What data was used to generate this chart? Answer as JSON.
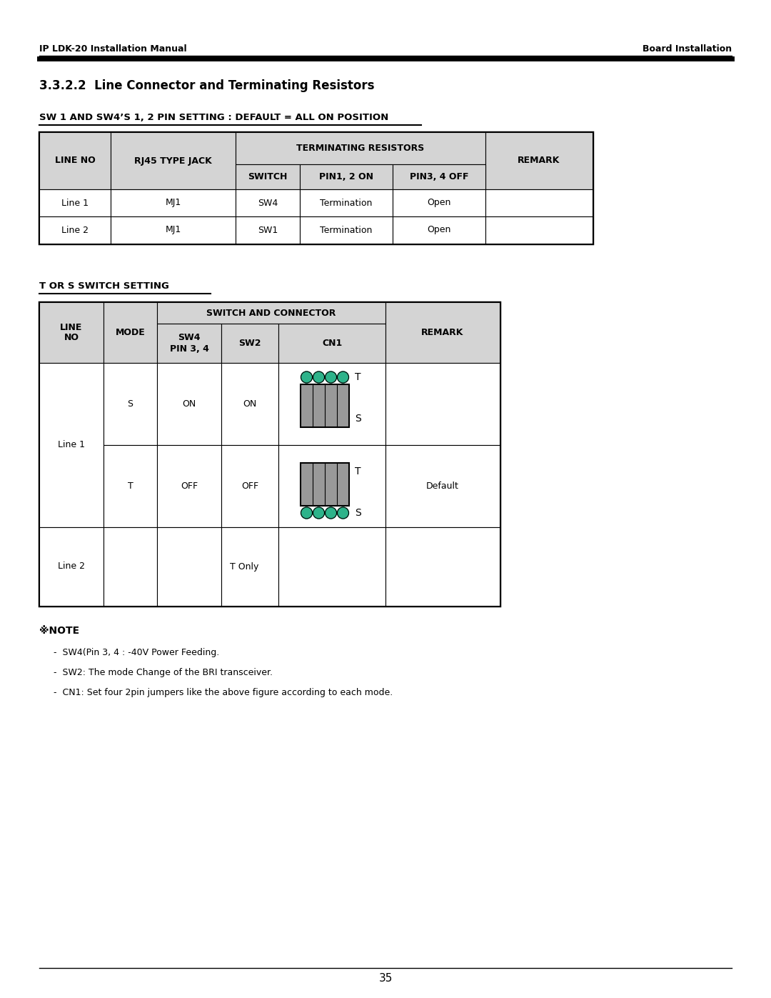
{
  "header_left": "IP LDK-20 Installation Manual",
  "header_right": "Board Installation",
  "section_title": "3.3.2.2  Line Connector and Terminating Resistors",
  "table1_heading": "SW 1 AND SW4’S 1, 2 PIN SETTING : DEFAULT = ALL ON POSITION",
  "table1_rows": [
    [
      "Line 1",
      "MJ1",
      "SW4",
      "Termination",
      "Open",
      ""
    ],
    [
      "Line 2",
      "MJ1",
      "SW1",
      "Termination",
      "Open",
      ""
    ]
  ],
  "table2_heading": "T OR S SWITCH SETTING",
  "note_symbol": "※NOTE",
  "note_lines": [
    "SW4(Pin 3, 4 : -40V Power Feeding.",
    "SW2: The mode Change of the BRI transceiver.",
    "CN1: Set four 2pin jumpers like the above figure according to each mode."
  ],
  "page_number": "35",
  "bg_color": "#ffffff",
  "table_header_bg": "#d4d4d4",
  "connector_green": "#2db38a",
  "connector_body": "#999999"
}
